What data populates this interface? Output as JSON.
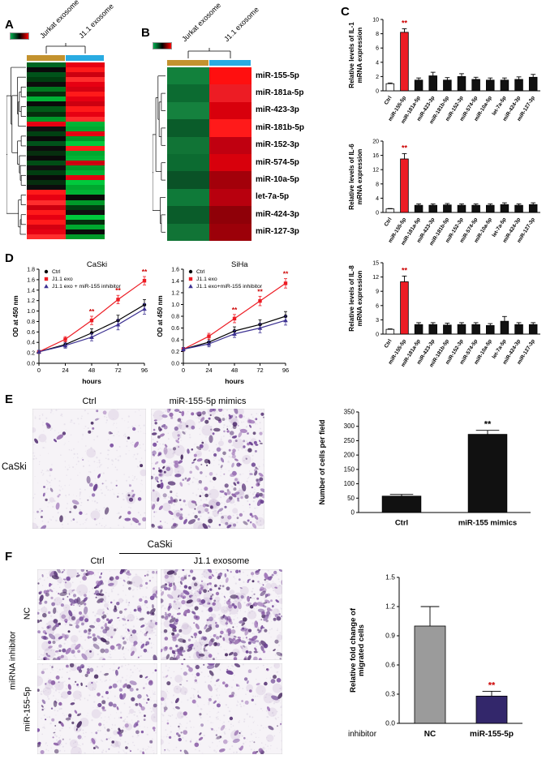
{
  "panels": {
    "a": "A",
    "b": "B",
    "c": "C",
    "d": "D",
    "e": "E",
    "f": "F"
  },
  "heatmap_scale_colors": [
    "#00b050",
    "#000000",
    "#ff0000"
  ],
  "panel_a": {
    "col_labels": [
      "Jurkat exosome",
      "J1.1 exosome"
    ],
    "col_bar_colors": [
      "#c3922e",
      "#29abe2"
    ],
    "rows": [
      [
        "#006622",
        "#e60012"
      ],
      [
        "#0a0a0a",
        "#ff1a1a"
      ],
      [
        "#00521a",
        "#cc0010"
      ],
      [
        "#003d10",
        "#ff2d2d"
      ],
      [
        "#0d0d0d",
        "#e60012"
      ],
      [
        "#00791f",
        "#d40011"
      ],
      [
        "#062e0e",
        "#ff1a1a"
      ],
      [
        "#00b335",
        "#e60012"
      ],
      [
        "#0a0a0a",
        "#cc0010"
      ],
      [
        "#005a17",
        "#ff1a1a"
      ],
      [
        "#062e0e",
        "#e60012"
      ],
      [
        "#009929",
        "#ff2d2d"
      ],
      [
        "#e60012",
        "#00b335"
      ],
      [
        "#101010",
        "#00a82f"
      ],
      [
        "#004012",
        "#e60012"
      ],
      [
        "#0a0a0a",
        "#009929"
      ],
      [
        "#00521a",
        "#00c93c"
      ],
      [
        "#0d0d0d",
        "#ff1a1a"
      ],
      [
        "#062e0e",
        "#00a82f"
      ],
      [
        "#0a0a0a",
        "#00b335"
      ],
      [
        "#004d15",
        "#cc0010"
      ],
      [
        "#101010",
        "#009929"
      ],
      [
        "#003d10",
        "#00b335"
      ],
      [
        "#0a0a0a",
        "#e60012"
      ],
      [
        "#062e0e",
        "#00c93c"
      ],
      [
        "#0d0d0d",
        "#00a82f"
      ],
      [
        "#ff1a1a",
        "#00b335"
      ],
      [
        "#e60012",
        "#0a0a0a"
      ],
      [
        "#ff2d2d",
        "#009929"
      ],
      [
        "#cc0010",
        "#003d10"
      ],
      [
        "#ff1a1a",
        "#101010"
      ],
      [
        "#e60012",
        "#00c93c"
      ],
      [
        "#ff1a1a",
        "#062e0e"
      ],
      [
        "#d40011",
        "#00a82f"
      ],
      [
        "#e60012",
        "#0a0a0a"
      ],
      [
        "#ff2d2d",
        "#009929"
      ]
    ]
  },
  "panel_b": {
    "col_labels": [
      "Jurkat exosome",
      "J1.1 exosome"
    ],
    "col_bar_colors": [
      "#c3922e",
      "#29abe2"
    ],
    "mirnas": [
      "miR-155-5p",
      "miR-181a-5p",
      "miR-423-3p",
      "miR-181b-5p",
      "miR-152-3p",
      "miR-574-5p",
      "miR-10a-5p",
      "let-7a-5p",
      "miR-424-3p",
      "miR-127-3p"
    ],
    "rows": [
      [
        "#12813c",
        "#ff0f0f"
      ],
      [
        "#0c6b31",
        "#ed1c24"
      ],
      [
        "#15813e",
        "#d8000c"
      ],
      [
        "#0a5c2a",
        "#ff1a1a"
      ],
      [
        "#117436",
        "#c00010"
      ],
      [
        "#0c6b31",
        "#d8000c"
      ],
      [
        "#0a5227",
        "#a3000a"
      ],
      [
        "#0f7a39",
        "#b8000e"
      ],
      [
        "#0a5c2a",
        "#8f0008"
      ],
      [
        "#117436",
        "#9c0009"
      ]
    ]
  },
  "panel_e": {
    "side_label": "CaSki",
    "image_labels": [
      "Ctrl",
      "miR-155-5p mimics"
    ]
  },
  "panel_f": {
    "header": "CaSki",
    "col_labels": [
      "Ctrl",
      "J1.1 exosome"
    ],
    "row_group_label": "miRNA inhibitor",
    "row_labels": [
      "NC",
      "miR-155-5p"
    ]
  },
  "micrographs": [
    {
      "name": "e-ctrl",
      "cells": 62,
      "seed": 11
    },
    {
      "name": "e-mimics",
      "cells": 270,
      "seed": 22
    },
    {
      "name": "f-nc-ctrl",
      "cells": 230,
      "seed": 33
    },
    {
      "name": "f-nc-j11",
      "cells": 320,
      "seed": 44
    },
    {
      "name": "f-mir-ctrl",
      "cells": 130,
      "seed": 55
    },
    {
      "name": "f-mir-j11",
      "cells": 95,
      "seed": 66
    }
  ],
  "chart_data": [
    {
      "type": "bar",
      "ylabel_lines": [
        "Relative levels of IL-1",
        "mRNA expression"
      ],
      "categories": [
        "Ctrl",
        "miR-155-5p",
        "miR-181a-5p",
        "miR-423-3p",
        "miR-181b-5p",
        "miR-152-3p",
        "miR-574-5p",
        "miR-10a-5p",
        "let-7a-5p",
        "miR-424-3p",
        "miR-127-3p"
      ],
      "values": [
        1.0,
        8.2,
        1.5,
        2.1,
        1.5,
        2.0,
        1.6,
        1.5,
        1.5,
        1.6,
        1.9
      ],
      "errors": [
        0.1,
        0.5,
        0.3,
        0.5,
        0.35,
        0.4,
        0.3,
        0.3,
        0.3,
        0.35,
        0.4
      ],
      "bar_colors": [
        "#ffffff",
        "#ed1c24",
        "#111111",
        "#111111",
        "#111111",
        "#111111",
        "#111111",
        "#111111",
        "#111111",
        "#111111",
        "#111111"
      ],
      "ylim": [
        0,
        10
      ],
      "yticks": [
        0,
        2,
        4,
        6,
        8,
        10
      ],
      "sig": {
        "index": 1,
        "text": "**",
        "color": "#cc0000"
      },
      "layout": {
        "ml": 44,
        "mr": 4,
        "mt": 8,
        "mb": 54,
        "xfs": 6.5,
        "xrot": -58,
        "yfs": 7,
        "bf": 0.55,
        "ylx": 8,
        "ylfs": 8,
        "ydec": 0,
        "sfs": 9
      }
    },
    {
      "type": "bar",
      "ylabel_lines": [
        "Relative levels of IL-6",
        "mRNA expression"
      ],
      "categories": [
        "Ctrl",
        "miR-155-5p",
        "miR-181a-5p",
        "miR-423-3p",
        "miR-181b-5p",
        "miR-152-3p",
        "miR-574-5p",
        "miR-10a-5p",
        "let-7a-5p",
        "miR-424-3p",
        "miR-127-3p"
      ],
      "values": [
        1.0,
        15.0,
        2.0,
        2.0,
        2.1,
        2.0,
        2.0,
        2.0,
        2.2,
        2.0,
        2.2
      ],
      "errors": [
        0.1,
        1.5,
        0.4,
        0.4,
        0.4,
        0.4,
        0.4,
        0.4,
        0.5,
        0.4,
        0.5
      ],
      "bar_colors": [
        "#ffffff",
        "#ed1c24",
        "#111111",
        "#111111",
        "#111111",
        "#111111",
        "#111111",
        "#111111",
        "#111111",
        "#111111",
        "#111111"
      ],
      "ylim": [
        0,
        20
      ],
      "yticks": [
        0,
        4,
        8,
        12,
        16,
        20
      ],
      "sig": {
        "index": 1,
        "text": "**",
        "color": "#cc0000"
      },
      "layout": {
        "ml": 44,
        "mr": 4,
        "mt": 8,
        "mb": 54,
        "xfs": 6.5,
        "xrot": -58,
        "yfs": 7,
        "bf": 0.55,
        "ylx": 8,
        "ylfs": 8,
        "ydec": 0,
        "sfs": 9
      }
    },
    {
      "type": "bar",
      "ylabel_lines": [
        "Relative levels of IL-8",
        "mRNA expression"
      ],
      "categories": [
        "Ctrl",
        "miR-155-5p",
        "miR-181a-5p",
        "miR-423-3p",
        "miR-181b-5p",
        "miR-152-3p",
        "miR-574-5p",
        "miR-10a-5p",
        "let-7a-5p",
        "miR-424-3p",
        "miR-127-3p"
      ],
      "values": [
        1.0,
        11.0,
        2.0,
        2.0,
        1.9,
        2.0,
        2.0,
        1.8,
        2.7,
        2.0,
        2.0
      ],
      "errors": [
        0.1,
        1.2,
        0.4,
        0.4,
        0.4,
        0.4,
        0.4,
        0.4,
        1.0,
        0.4,
        0.4
      ],
      "bar_colors": [
        "#ffffff",
        "#ed1c24",
        "#111111",
        "#111111",
        "#111111",
        "#111111",
        "#111111",
        "#111111",
        "#111111",
        "#111111",
        "#111111"
      ],
      "ylim": [
        0,
        15
      ],
      "yticks": [
        0,
        3,
        6,
        9,
        12,
        15
      ],
      "sig": {
        "index": 1,
        "text": "**",
        "color": "#cc0000"
      },
      "layout": {
        "ml": 44,
        "mr": 4,
        "mt": 8,
        "mb": 54,
        "xfs": 6.5,
        "xrot": -58,
        "yfs": 7,
        "bf": 0.55,
        "ylx": 8,
        "ylfs": 8,
        "ydec": 0,
        "sfs": 9
      }
    },
    {
      "type": "line",
      "title": "CaSki",
      "ylabel": "OD at 450 nm",
      "xlabel": "hours",
      "x": [
        0,
        24,
        48,
        72,
        96
      ],
      "xticks": [
        0,
        24,
        48,
        72,
        96
      ],
      "ylim": [
        0,
        1.8
      ],
      "yticks": [
        0,
        0.2,
        0.4,
        0.6,
        0.8,
        1.0,
        1.2,
        1.4,
        1.6,
        1.8
      ],
      "series": [
        {
          "name": "Ctrl",
          "color": "#000000",
          "marker": "circle",
          "values": [
            0.22,
            0.36,
            0.58,
            0.82,
            1.12
          ],
          "errors": [
            0.03,
            0.05,
            0.08,
            0.1,
            0.1
          ]
        },
        {
          "name": "J1.1 exo",
          "color": "#ed1c24",
          "marker": "square",
          "values": [
            0.22,
            0.46,
            0.82,
            1.22,
            1.58
          ],
          "errors": [
            0.03,
            0.05,
            0.08,
            0.08,
            0.08
          ]
        },
        {
          "name": "J1.1 exo + miR-155 inhibitor",
          "color": "#3d3292",
          "marker": "triangle",
          "values": [
            0.22,
            0.34,
            0.5,
            0.74,
            1.04
          ],
          "errors": [
            0.03,
            0.05,
            0.07,
            0.1,
            0.1
          ]
        }
      ],
      "sig": [
        {
          "xi": 2,
          "text": "**"
        },
        {
          "xi": 3,
          "text": "**"
        },
        {
          "xi": 4,
          "text": "**"
        }
      ],
      "sig_color": "#cc0000",
      "layout": {
        "ml": 36,
        "mr": 10,
        "mt": 14,
        "mb": 28,
        "yfs": 7,
        "xfs": 7.5,
        "ydec": 1,
        "lfs": 6.8,
        "tfs": 9.5
      }
    },
    {
      "type": "line",
      "title": "SiHa",
      "ylabel": "OD at 450 nm",
      "xlabel": "hours",
      "x": [
        0,
        24,
        48,
        72,
        96
      ],
      "xticks": [
        0,
        24,
        48,
        72,
        96
      ],
      "ylim": [
        0,
        1.6
      ],
      "yticks": [
        0,
        0.2,
        0.4,
        0.6,
        0.8,
        1.0,
        1.2,
        1.4,
        1.6
      ],
      "series": [
        {
          "name": "Ctrl",
          "color": "#000000",
          "marker": "circle",
          "values": [
            0.24,
            0.36,
            0.55,
            0.66,
            0.8
          ],
          "errors": [
            0.03,
            0.05,
            0.07,
            0.08,
            0.08
          ]
        },
        {
          "name": "J1.1 exo",
          "color": "#ed1c24",
          "marker": "square",
          "values": [
            0.24,
            0.46,
            0.76,
            1.06,
            1.36
          ],
          "errors": [
            0.03,
            0.05,
            0.07,
            0.08,
            0.08
          ]
        },
        {
          "name": "J1.1 exo+miR-155 inhibitor",
          "color": "#3d3292",
          "marker": "triangle",
          "values": [
            0.24,
            0.33,
            0.5,
            0.6,
            0.73
          ],
          "errors": [
            0.03,
            0.05,
            0.06,
            0.08,
            0.08
          ]
        }
      ],
      "sig": [
        {
          "xi": 2,
          "text": "**"
        },
        {
          "xi": 3,
          "text": "**"
        },
        {
          "xi": 4,
          "text": "**"
        }
      ],
      "sig_color": "#cc0000",
      "layout": {
        "ml": 36,
        "mr": 10,
        "mt": 14,
        "mb": 28,
        "yfs": 7,
        "xfs": 7.5,
        "ydec": 1,
        "lfs": 6.8,
        "tfs": 9.5
      }
    },
    {
      "type": "bar",
      "ylabel_lines": [
        "Number of cells per field"
      ],
      "categories": [
        "Ctrl",
        "miR-155 mimics"
      ],
      "values": [
        57,
        272
      ],
      "errors": [
        6,
        14
      ],
      "bar_colors": [
        "#111111",
        "#111111"
      ],
      "ylim": [
        0,
        350
      ],
      "yticks": [
        0,
        50,
        100,
        150,
        200,
        250,
        300,
        350
      ],
      "sig": {
        "index": 1,
        "text": "**",
        "color": "#000000"
      },
      "layout": {
        "ml": 56,
        "mr": 16,
        "mt": 14,
        "mb": 34,
        "xfs": 9.5,
        "xrot": 0,
        "yfs": 8,
        "bf": 0.45,
        "ylx": 14,
        "ylfs": 9,
        "ydec": 0,
        "sfs": 11
      }
    },
    {
      "type": "bar",
      "ylabel_lines": [
        "Relative fold change of",
        "migrated cells"
      ],
      "xlabel": "inhibitor",
      "categories": [
        "NC",
        "miR-155-5p"
      ],
      "values": [
        1.0,
        0.28
      ],
      "errors": [
        0.2,
        0.05
      ],
      "bar_colors": [
        "#9b9b9b",
        "#33276b"
      ],
      "ylim": [
        0,
        1.5
      ],
      "yticks": [
        0,
        0.3,
        0.6,
        0.9,
        1.2,
        1.5
      ],
      "sig": {
        "index": 1,
        "text": "**",
        "color": "#cc0000"
      },
      "layout": {
        "ml": 68,
        "mr": 26,
        "mt": 16,
        "mb": 44,
        "xfs": 10,
        "xrot": 0,
        "yfs": 8.5,
        "bf": 0.5,
        "ylx": 14,
        "ylfs": 9.5,
        "ydec": 1,
        "sfs": 11
      }
    }
  ]
}
